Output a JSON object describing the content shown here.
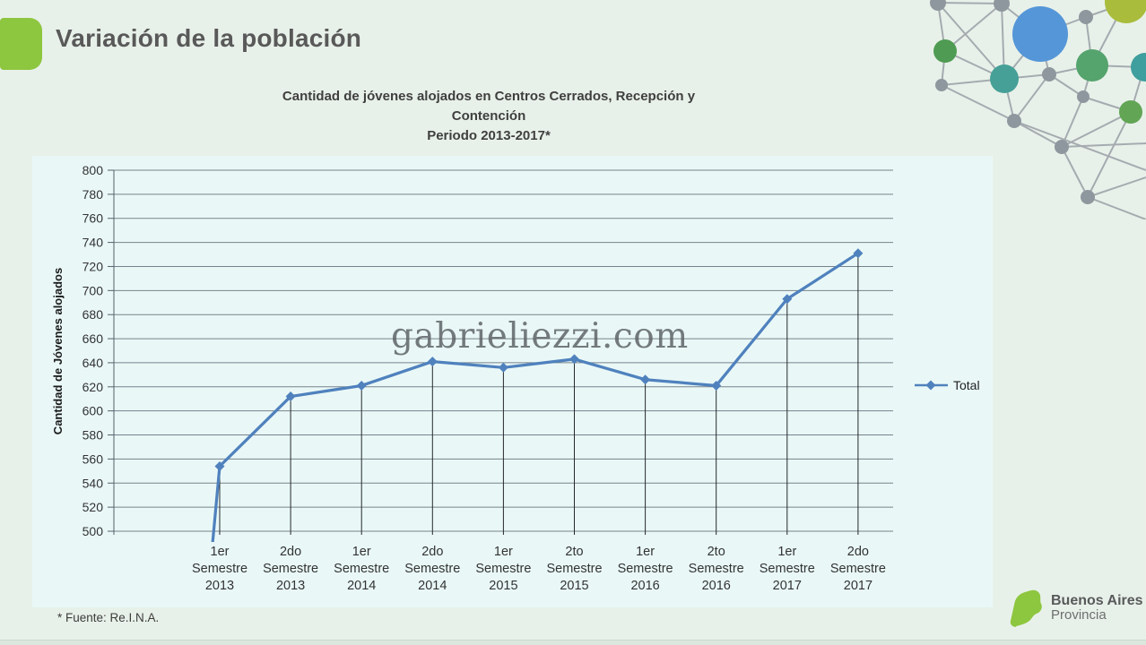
{
  "slide": {
    "title": "Variación de la población",
    "footnote": "* Fuente: Re.I.N.A.",
    "watermark": "gabrieliezzi.com",
    "accent_color": "#8dc63f",
    "background_color": "#e8f1e9",
    "panel_color": "#e9f8f7"
  },
  "chart": {
    "title_lines": [
      "Cantidad de jóvenes alojados en Centros Cerrados, Recepción y",
      "Contención",
      "Periodo 2013-2017*"
    ]
  },
  "chart_data": {
    "type": "line",
    "title": "Cantidad de jóvenes alojados en Centros Cerrados, Recepción y Contención Periodo 2013-2017*",
    "xlabel": "",
    "ylabel": "Cantidad de Jóvenes alojados",
    "ylim": [
      500,
      800
    ],
    "yticks": [
      500,
      520,
      540,
      560,
      580,
      600,
      620,
      640,
      660,
      680,
      700,
      720,
      740,
      760,
      780,
      800
    ],
    "grid": true,
    "drop_lines": true,
    "legend_position": "right",
    "line_color": "#4f81bd",
    "marker": "diamond",
    "categories": [
      [
        "1er",
        "Semestre",
        "2013"
      ],
      [
        "2do",
        "Semestre",
        "2013"
      ],
      [
        "1er",
        "Semestre",
        "2014"
      ],
      [
        "2do",
        "Semestre",
        "2014"
      ],
      [
        "1er",
        "Semestre",
        "2015"
      ],
      [
        "2to",
        "Semestre",
        "2015"
      ],
      [
        "1er",
        "Semestre",
        "2016"
      ],
      [
        "2to",
        "Semestre",
        "2016"
      ],
      [
        "1er",
        "Semestre",
        "2017"
      ],
      [
        "2do",
        "Semestre",
        "2017"
      ]
    ],
    "series": [
      {
        "name": "Total",
        "values": [
          554,
          612,
          621,
          641,
          636,
          643,
          626,
          621,
          693,
          731
        ]
      }
    ]
  },
  "logo": {
    "name": "Buenos Aires",
    "subtitle": "Provincia"
  }
}
